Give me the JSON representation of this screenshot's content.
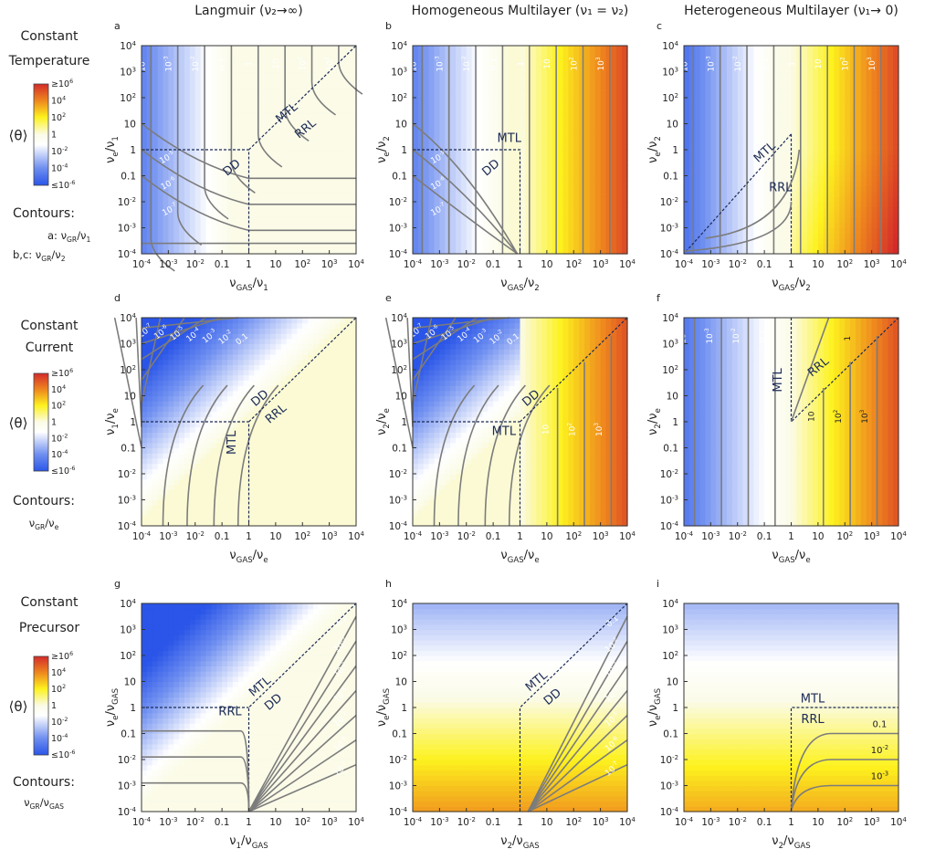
{
  "column_titles": [
    "Langmuir (ν₂→∞)",
    "Homogeneous Multilayer (ν₁ = ν₂)",
    "Heterogeneous Multilayer (ν₁→ 0)"
  ],
  "rows": [
    {
      "title_lines": [
        "Constant",
        "Temperature"
      ],
      "cbar_label": "⟨θ⟩",
      "contours_title": "Contours:",
      "contour_lines": [
        "a:  ν_GR/ν_1",
        "b,c:  ν_GR/ν_2"
      ]
    },
    {
      "title_lines": [
        "Constant",
        "Current"
      ],
      "cbar_label": "⟨θ⟩",
      "contours_title": "Contours:",
      "contour_lines": [
        "ν_GR/ν_e"
      ]
    },
    {
      "title_lines": [
        "Constant",
        "Precursor"
      ],
      "cbar_label": "⟨θ⟩",
      "contours_title": "Contours:",
      "contour_lines": [
        "ν_GR/ν_GAS"
      ]
    }
  ],
  "colorbar": {
    "ticks": [
      "≥10^6",
      "10^4",
      "10^2",
      "1",
      "10^-2",
      "10^-4",
      "≤10^-6"
    ],
    "stops": [
      "#d42a2a",
      "#ef8a1e",
      "#fdf21e",
      "#fbfbe8",
      "#ffffff",
      "#6f8ff0",
      "#2a55e8"
    ]
  },
  "colors": {
    "contour": "#7c7c7c",
    "boundary": "#1b2a55",
    "region_label": "#1b2a55"
  },
  "chart_data": [
    {
      "id": "a",
      "type": "heatmap",
      "xlabel": "ν_GAS/ν_1",
      "ylabel": "ν_e/ν_1",
      "xlim": [
        0.0001,
        10000
      ],
      "ylim": [
        0.0001,
        10000
      ],
      "scale": "log",
      "tick_labels": [
        "10^-4",
        "10^-3",
        "10^-2",
        "0.1",
        "1",
        "10",
        "10^2",
        "10^3",
        "10^4"
      ],
      "regions": [
        "MTL",
        "RRL",
        "DD"
      ],
      "contour_labels": [
        "10^-4",
        "10^-3",
        "10^-2",
        "0.1",
        "1",
        "10",
        "10^2",
        "10^3",
        "10^-5",
        "10^-6",
        "10^-7"
      ]
    },
    {
      "id": "b",
      "type": "heatmap",
      "xlabel": "ν_GAS/ν_2",
      "ylabel": "ν_e/ν_2",
      "xlim": [
        0.0001,
        10000
      ],
      "ylim": [
        0.0001,
        10000
      ],
      "scale": "log",
      "tick_labels": [
        "10^-4",
        "10^-3",
        "10^-2",
        "0.1",
        "1",
        "10",
        "10^2",
        "10^3",
        "10^4"
      ],
      "regions": [
        "MTL",
        "DD"
      ],
      "contour_labels": [
        "10^-4",
        "10^-3",
        "10^-2",
        "0.1",
        "1",
        "10",
        "10^2",
        "10^3",
        "10^-5",
        "10^-6",
        "10^-7"
      ]
    },
    {
      "id": "c",
      "type": "heatmap",
      "xlabel": "ν_GAS/ν_2",
      "ylabel": "ν_e/ν_2",
      "xlim": [
        0.0001,
        10000
      ],
      "ylim": [
        0.0001,
        10000
      ],
      "scale": "log",
      "tick_labels": [
        "10^-4",
        "10^-3",
        "10^-2",
        "0.1",
        "1",
        "10",
        "10^2",
        "10^3",
        "10^4"
      ],
      "regions": [
        "MTL",
        "RRL"
      ],
      "contour_labels": [
        "10^-4",
        "10^-3",
        "10^-2",
        "0.1",
        "1",
        "10",
        "10^2",
        "10^3"
      ]
    },
    {
      "id": "d",
      "type": "heatmap",
      "xlabel": "ν_GAS/ν_e",
      "ylabel": "ν_1/ν_e",
      "xlim": [
        0.0001,
        10000
      ],
      "ylim": [
        0.0001,
        10000
      ],
      "scale": "log",
      "tick_labels": [
        "10^-4",
        "10^-3",
        "10^-2",
        "0.1",
        "1",
        "10",
        "10^2",
        "10^3",
        "10^4"
      ],
      "regions": [
        "DD",
        "RRL",
        "MTL"
      ],
      "contour_labels": [
        "10^-7",
        "10^-6",
        "10^-5",
        "10^-4",
        "10^-3",
        "10^-2",
        "0.1"
      ]
    },
    {
      "id": "e",
      "type": "heatmap",
      "xlabel": "ν_GAS/ν_e",
      "ylabel": "ν_2/ν_e",
      "xlim": [
        0.0001,
        10000
      ],
      "ylim": [
        0.0001,
        10000
      ],
      "scale": "log",
      "tick_labels": [
        "10^-4",
        "10^-3",
        "10^-2",
        "0.1",
        "1",
        "10",
        "10^2",
        "10^3",
        "10^4"
      ],
      "regions": [
        "DD",
        "MTL"
      ],
      "contour_labels": [
        "10^-7",
        "10^-6",
        "10^-5",
        "10^-4",
        "10^-3",
        "10^-2",
        "0.1",
        "1",
        "10",
        "10^2",
        "10^3"
      ]
    },
    {
      "id": "f",
      "type": "heatmap",
      "xlabel": "ν_GAS/ν_e",
      "ylabel": "ν_2/ν_e",
      "xlim": [
        0.0001,
        10000
      ],
      "ylim": [
        0.0001,
        10000
      ],
      "scale": "log",
      "tick_labels": [
        "10^-4",
        "10^-3",
        "10^-2",
        "0.1",
        "1",
        "10",
        "10^2",
        "10^3",
        "10^4"
      ],
      "regions": [
        "MTL",
        "RRL"
      ],
      "contour_labels": [
        "10^-4",
        "10^-3",
        "10^-2",
        "0.1",
        "1",
        "10",
        "10^2",
        "10^3"
      ]
    },
    {
      "id": "g",
      "type": "heatmap",
      "xlabel": "ν_1/ν_GAS",
      "ylabel": "ν_e/ν_GAS",
      "xlim": [
        0.0001,
        10000
      ],
      "ylim": [
        0.0001,
        10000
      ],
      "scale": "log",
      "tick_labels": [
        "10^-4",
        "10^-3",
        "10^-2",
        "0.1",
        "1",
        "10",
        "10^2",
        "10^3",
        "10^4"
      ],
      "regions": [
        "MTL",
        "DD",
        "RRL"
      ],
      "contour_labels": [
        "0.1",
        "10^-2",
        "10^-3",
        "10^-4",
        "10^-5",
        "10^-6",
        "10^-7"
      ]
    },
    {
      "id": "h",
      "type": "heatmap",
      "xlabel": "ν_2/ν_GAS",
      "ylabel": "ν_e/ν_GAS",
      "xlim": [
        0.0001,
        10000
      ],
      "ylim": [
        0.0001,
        10000
      ],
      "scale": "log",
      "tick_labels": [
        "10^-4",
        "10^-3",
        "10^-2",
        "0.1",
        "1",
        "10",
        "10^2",
        "10^3",
        "10^4"
      ],
      "regions": [
        "MTL",
        "DD"
      ],
      "contour_labels": [
        "0.1",
        "10^-2",
        "10^-3",
        "10^-4",
        "10^-5",
        "10^-6",
        "10^-7"
      ]
    },
    {
      "id": "i",
      "type": "heatmap",
      "xlabel": "ν_2/ν_GAS",
      "ylabel": "ν_e/ν_GAS",
      "xlim": [
        0.0001,
        10000
      ],
      "ylim": [
        0.0001,
        10000
      ],
      "scale": "log",
      "tick_labels": [
        "10^-4",
        "10^-3",
        "10^-2",
        "0.1",
        "1",
        "10",
        "10^2",
        "10^3",
        "10^4"
      ],
      "regions": [
        "MTL",
        "RRL"
      ],
      "contour_labels": [
        "0.1",
        "10^-2",
        "10^-3"
      ]
    }
  ]
}
